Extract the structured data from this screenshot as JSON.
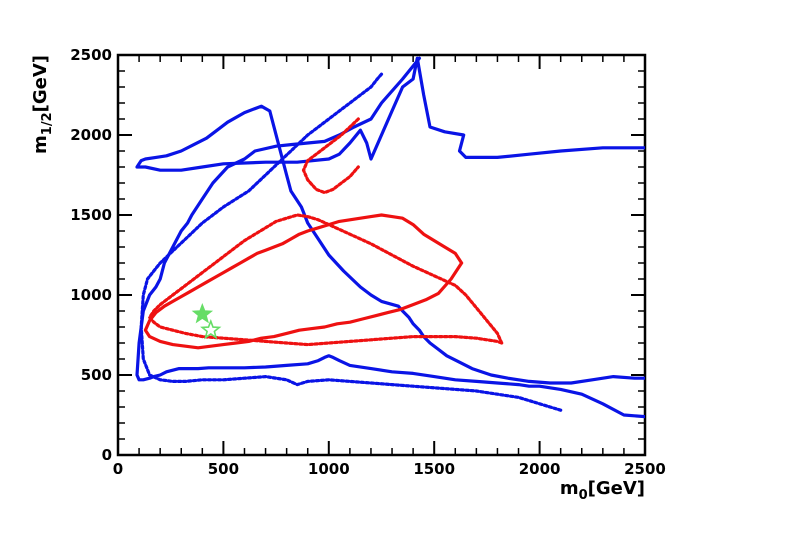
{
  "chart_data": {
    "type": "line",
    "xlabel": {
      "main": "m",
      "sub": "0",
      "unit": "[GeV]"
    },
    "ylabel": {
      "main": "m",
      "sub": "1/2",
      "unit": "[GeV]"
    },
    "xlim": [
      0,
      2500
    ],
    "ylim": [
      0,
      2500
    ],
    "xticks": [
      0,
      500,
      1000,
      1500,
      2000,
      2500
    ],
    "yticks": [
      0,
      500,
      1000,
      1500,
      2000,
      2500
    ],
    "grid": false,
    "colors": {
      "blue": "#0a14e6",
      "red": "#ee1111",
      "green": "#66dd66"
    },
    "series": [
      {
        "color": "blue",
        "style": "solid",
        "x": [
          2500,
          2300,
          2100,
          1950,
          1800,
          1650,
          1620,
          1640,
          1550,
          1480,
          1450,
          1420,
          1400,
          1350,
          1300,
          1200,
          1180,
          1150,
          1100,
          1050,
          1000,
          850,
          700,
          500,
          400,
          300,
          200,
          130,
          100,
          90,
          100,
          110,
          130,
          180,
          230,
          300,
          360,
          420,
          470,
          520,
          600,
          680,
          720,
          740,
          760,
          780,
          800,
          820,
          870,
          900,
          950,
          1000,
          1070,
          1150,
          1200,
          1250,
          1330,
          1350,
          1380,
          1400,
          1430,
          1450,
          1480,
          1520,
          1560,
          1620,
          1680,
          1770,
          1850,
          1950,
          2050,
          2150,
          2250,
          2350,
          2450,
          2500
        ],
        "y": [
          1920,
          1920,
          1900,
          1880,
          1860,
          1860,
          1900,
          2000,
          2020,
          2050,
          2250,
          2480,
          2350,
          2300,
          2150,
          1850,
          1950,
          2030,
          1950,
          1880,
          1850,
          1830,
          1830,
          1820,
          1800,
          1780,
          1780,
          1800,
          1800,
          1800,
          1820,
          1840,
          1850,
          1860,
          1870,
          1900,
          1940,
          1980,
          2030,
          2080,
          2140,
          2180,
          2150,
          2050,
          1950,
          1850,
          1750,
          1650,
          1550,
          1450,
          1350,
          1250,
          1150,
          1050,
          1000,
          960,
          930,
          900,
          860,
          820,
          780,
          740,
          700,
          660,
          620,
          580,
          540,
          500,
          480,
          460,
          450,
          450,
          470,
          490,
          480,
          480
        ]
      },
      {
        "color": "blue",
        "style": "solid",
        "x": [
          1430,
          1350,
          1250,
          1200,
          1120,
          1050,
          980,
          900,
          820,
          750,
          650,
          600,
          520,
          450,
          400,
          350,
          330,
          300,
          260,
          240,
          220,
          200,
          180,
          150,
          120,
          100,
          90,
          100,
          120,
          150,
          170,
          200,
          230,
          260,
          290,
          330,
          380,
          430,
          500,
          600,
          700,
          800,
          900,
          950,
          980,
          1000,
          1020,
          1050,
          1100,
          1200,
          1300,
          1400,
          1500,
          1600,
          1700,
          1800,
          1900,
          1950,
          2000,
          2050,
          2100,
          2200,
          2300,
          2400,
          2500
        ],
        "y": [
          2480,
          2350,
          2200,
          2100,
          2050,
          2000,
          1960,
          1950,
          1940,
          1930,
          1900,
          1850,
          1800,
          1700,
          1600,
          1500,
          1450,
          1400,
          1300,
          1250,
          1200,
          1100,
          1050,
          1000,
          900,
          700,
          500,
          470,
          470,
          480,
          490,
          500,
          520,
          530,
          540,
          540,
          540,
          545,
          545,
          545,
          550,
          560,
          570,
          590,
          610,
          620,
          610,
          590,
          560,
          540,
          520,
          510,
          490,
          470,
          460,
          450,
          440,
          430,
          430,
          420,
          410,
          380,
          320,
          250,
          240
        ]
      },
      {
        "color": "blue",
        "style": "dotted",
        "x": [
          1250,
          1230,
          1200,
          1150,
          1100,
          1050,
          1000,
          950,
          900,
          860,
          820,
          780,
          740,
          700,
          660,
          620,
          560,
          500,
          450,
          400,
          360,
          320,
          280,
          240,
          200,
          170,
          140,
          120,
          110,
          120,
          150,
          200,
          260,
          320,
          400,
          500,
          600,
          700,
          800,
          850,
          900,
          1000,
          1100,
          1200,
          1300,
          1400,
          1500,
          1600,
          1700,
          1800,
          1900,
          1950,
          2000,
          2050,
          2100
        ],
        "y": [
          2380,
          2350,
          2300,
          2250,
          2200,
          2150,
          2100,
          2050,
          2000,
          1950,
          1900,
          1850,
          1800,
          1750,
          1700,
          1650,
          1600,
          1550,
          1500,
          1450,
          1400,
          1350,
          1300,
          1250,
          1200,
          1150,
          1100,
          1000,
          800,
          600,
          500,
          470,
          460,
          460,
          470,
          470,
          480,
          490,
          470,
          440,
          460,
          470,
          460,
          450,
          440,
          430,
          420,
          410,
          400,
          380,
          360,
          340,
          320,
          300,
          280
        ]
      },
      {
        "color": "red",
        "style": "solid",
        "x": [
          1630,
          1600,
          1550,
          1500,
          1450,
          1400,
          1350,
          1300,
          1250,
          1200,
          1150,
          1100,
          1050,
          1000,
          950,
          900,
          860,
          820,
          780,
          740,
          700,
          660,
          620,
          580,
          540,
          500,
          460,
          420,
          380,
          340,
          300,
          260,
          220,
          180,
          150,
          130,
          150,
          200,
          260,
          320,
          380,
          440,
          500,
          560,
          620,
          680,
          740,
          800,
          860,
          920,
          980,
          1040,
          1100,
          1160,
          1220,
          1280,
          1340,
          1400,
          1460,
          1520,
          1580,
          1630
        ],
        "y": [
          1200,
          1260,
          1300,
          1340,
          1380,
          1440,
          1480,
          1490,
          1500,
          1490,
          1480,
          1470,
          1460,
          1440,
          1420,
          1400,
          1380,
          1350,
          1320,
          1300,
          1280,
          1260,
          1230,
          1200,
          1170,
          1140,
          1110,
          1080,
          1050,
          1020,
          990,
          960,
          930,
          890,
          840,
          780,
          740,
          710,
          690,
          680,
          670,
          680,
          690,
          700,
          710,
          730,
          740,
          760,
          780,
          790,
          800,
          820,
          830,
          850,
          870,
          890,
          910,
          940,
          970,
          1010,
          1100,
          1200
        ]
      },
      {
        "color": "red",
        "style": "dotted",
        "x": [
          1820,
          1800,
          1750,
          1700,
          1650,
          1600,
          1500,
          1400,
          1300,
          1200,
          1100,
          1000,
          950,
          900,
          850,
          800,
          750,
          700,
          650,
          600,
          560,
          520,
          480,
          440,
          400,
          360,
          320,
          280,
          240,
          200,
          170,
          150,
          170,
          200,
          260,
          320,
          400,
          500,
          600,
          700,
          800,
          900,
          1000,
          1100,
          1200,
          1300,
          1400,
          1500,
          1600,
          1700,
          1750,
          1800,
          1820
        ],
        "y": [
          700,
          760,
          840,
          920,
          1000,
          1060,
          1120,
          1180,
          1250,
          1320,
          1380,
          1440,
          1470,
          1490,
          1500,
          1480,
          1460,
          1420,
          1380,
          1340,
          1300,
          1260,
          1220,
          1180,
          1140,
          1100,
          1060,
          1020,
          980,
          940,
          900,
          860,
          830,
          800,
          780,
          760,
          740,
          730,
          720,
          710,
          700,
          690,
          700,
          710,
          720,
          730,
          740,
          740,
          740,
          730,
          720,
          710,
          700
        ]
      },
      {
        "color": "red",
        "style": "dotted",
        "x": [
          1140,
          1100,
          1060,
          1020,
          980,
          940,
          900,
          880,
          900,
          940,
          980,
          1020,
          1060,
          1100,
          1140
        ],
        "y": [
          2100,
          2050,
          2000,
          1960,
          1920,
          1880,
          1840,
          1780,
          1720,
          1660,
          1640,
          1660,
          1700,
          1740,
          1800
        ]
      }
    ],
    "markers": [
      {
        "symbol": "star-filled",
        "color": "green",
        "x": 400,
        "y": 880
      },
      {
        "symbol": "star-open",
        "color": "green",
        "x": 440,
        "y": 780
      }
    ]
  }
}
